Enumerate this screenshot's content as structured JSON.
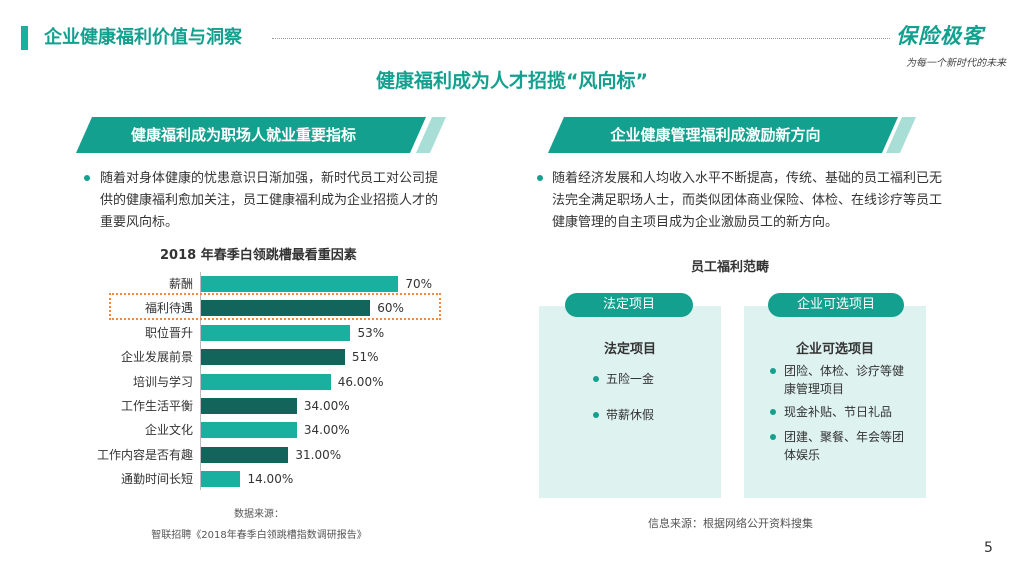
{
  "header": {
    "title": "企业健康福利价值与洞察"
  },
  "logo": {
    "text": "保险极客",
    "slogan": "为每一个新时代的未来"
  },
  "main_title": "健康福利成为人才招揽“风向标”",
  "left": {
    "banner": "健康福利成为职场人就业重要指标",
    "bullet": "随着对身体健康的忧患意识日渐加强，新时代员工对公司提供的健康福利愈加关注，员工健康福利成为企业招揽人才的重要风向标。",
    "chart_title": "2018 年春季白领跳槽最看重因素",
    "source_label": "数据来源：",
    "source": "智联招聘《2018年春季白领跳槽指数调研报告》"
  },
  "chart_data": {
    "type": "bar",
    "orientation": "horizontal",
    "title": "2018 年春季白领跳槽最看重因素",
    "categories": [
      "薪酬",
      "福利待遇",
      "职位晋升",
      "企业发展前景",
      "培训与学习",
      "工作生活平衡",
      "企业文化",
      "工作内容是否有趣",
      "通勤时间长短"
    ],
    "values": [
      70,
      60,
      53,
      51,
      46,
      34,
      34,
      31,
      14
    ],
    "value_labels": [
      "70%",
      "60%",
      "53%",
      "51%",
      "46.00%",
      "34.00%",
      "34.00%",
      "31.00%",
      "14.00%"
    ],
    "colors": [
      "#1ab0a0",
      "#13645a",
      "#1ab0a0",
      "#13645a",
      "#1ab0a0",
      "#13645a",
      "#1ab0a0",
      "#13645a",
      "#1ab0a0"
    ],
    "highlighted_category": "福利待遇",
    "xlim": [
      0,
      100
    ]
  },
  "right": {
    "banner": "企业健康管理福利成激励新方向",
    "bullet": "随着经济发展和人均收入水平不断提高，传统、基础的员工福利已无法完全满足职场人士，而类似团体商业保险、体检、在线诊疗等员工健康管理的自主项目成为企业激励员工的新方向。",
    "scope_title": "员工福利范畴",
    "legal": {
      "pill": "法定项目",
      "heading": "法定项目",
      "items": [
        "五险一金",
        "带薪休假"
      ]
    },
    "optional": {
      "pill": "企业可选项目",
      "heading": "企业可选项目",
      "items": [
        "团险、体检、诊疗等健康管理项目",
        "现金补贴、节日礼品",
        "团建、聚餐、年会等团体娱乐"
      ]
    },
    "info_source": "信息来源：根据网络公开资料搜集"
  },
  "page_number": "5"
}
